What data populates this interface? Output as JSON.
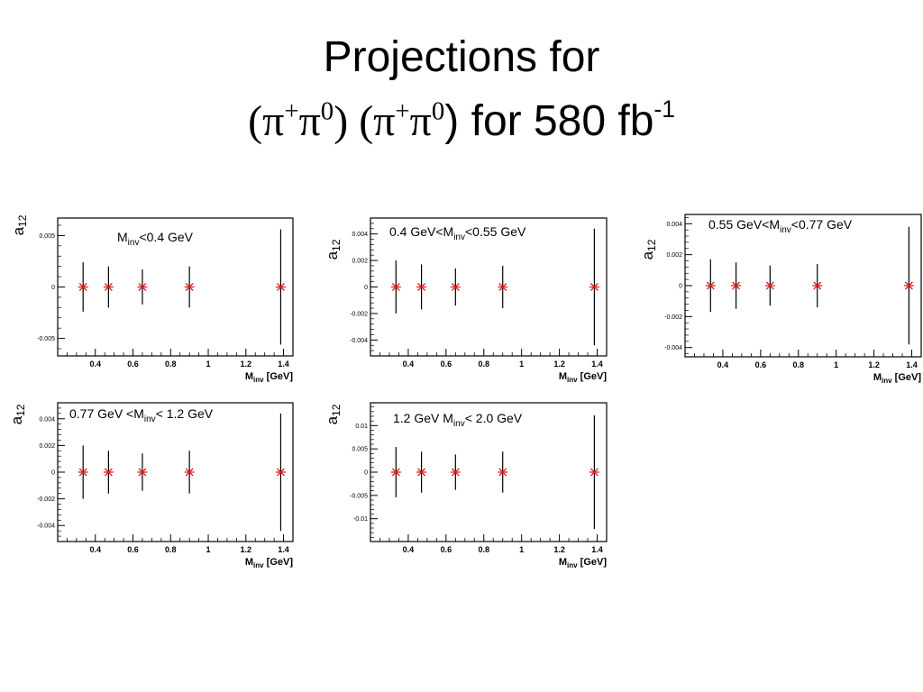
{
  "title": {
    "line1": "Projections for",
    "line2": {
      "open1": "(",
      "pi_a": "π",
      "plus_a": "+",
      "pi_b": "π",
      "zero_a": "0",
      "close1": ") (",
      "pi_c": "π",
      "plus_b": "+",
      "pi_d": "π",
      "zero_b": "0",
      "close2": ") for 580 fb",
      "exponent": "-1"
    }
  },
  "colors": {
    "marker": "#dd2222",
    "errorbar": "#000000",
    "frame": "#000000"
  },
  "chart_data": [
    {
      "type": "scatter",
      "label": {
        "pre": "M",
        "sub": "inv",
        "post": "<0.4 GeV"
      },
      "ylabel": {
        "base": "a",
        "sub": "12"
      },
      "xlabel": {
        "base": "M",
        "sub": "inv",
        "post": " [GeV]"
      },
      "xlim": [
        0.2,
        1.45
      ],
      "ylim": [
        -0.0067,
        0.0067
      ],
      "xticks": [
        0.4,
        0.6,
        0.8,
        1,
        1.2,
        1.4
      ],
      "yticks": [
        -0.005,
        0,
        0.005
      ],
      "ytick_labels": [
        "-0.005",
        "0",
        "0.005"
      ],
      "x": [
        0.335,
        0.47,
        0.65,
        0.9,
        1.385
      ],
      "y": [
        0,
        0,
        0,
        0,
        0
      ],
      "yerr": [
        0.0024,
        0.002,
        0.0017,
        0.002,
        0.0056
      ]
    },
    {
      "type": "scatter",
      "label": {
        "pre": "0.4 GeV<M",
        "sub": "inv",
        "post": "<0.55 GeV"
      },
      "ylabel": {
        "base": "a",
        "sub": "12"
      },
      "xlabel": {
        "base": "M",
        "sub": "inv",
        "post": " [GeV]"
      },
      "xlim": [
        0.2,
        1.45
      ],
      "ylim": [
        -0.0052,
        0.0052
      ],
      "xticks": [
        0.4,
        0.6,
        0.8,
        1,
        1.2,
        1.4
      ],
      "yticks": [
        -0.004,
        -0.002,
        0,
        0.002,
        0.004
      ],
      "ytick_labels": [
        "-0.004",
        "-0.002",
        "0",
        "0.002",
        "0.004"
      ],
      "x": [
        0.335,
        0.47,
        0.65,
        0.9,
        1.385
      ],
      "y": [
        0,
        0,
        0,
        0,
        0
      ],
      "yerr": [
        0.002,
        0.0017,
        0.0014,
        0.0016,
        0.0044
      ]
    },
    {
      "type": "scatter",
      "label": {
        "pre": "0.55 GeV<M",
        "sub": "inv",
        "post": "<0.77 GeV"
      },
      "ylabel": {
        "base": "a",
        "sub": "12"
      },
      "xlabel": {
        "base": "M",
        "sub": "inv",
        "post": " [GeV]"
      },
      "xlim": [
        0.2,
        1.45
      ],
      "ylim": [
        -0.0046,
        0.0046
      ],
      "xticks": [
        0.4,
        0.6,
        0.8,
        1,
        1.2,
        1.4
      ],
      "yticks": [
        -0.004,
        -0.002,
        0,
        0.002,
        0.004
      ],
      "ytick_labels": [
        "-0.004",
        "-0.002",
        "0",
        "0.002",
        "0.004"
      ],
      "x": [
        0.335,
        0.47,
        0.65,
        0.9,
        1.385
      ],
      "y": [
        0,
        0,
        0,
        0,
        0
      ],
      "yerr": [
        0.0017,
        0.0015,
        0.0013,
        0.0014,
        0.0038
      ]
    },
    {
      "type": "scatter",
      "label": {
        "pre": "0.77 GeV <M",
        "sub": "inv",
        "post": "< 1.2 GeV"
      },
      "ylabel": {
        "base": "a",
        "sub": "12"
      },
      "xlabel": {
        "base": "M",
        "sub": "inv",
        "post": " [GeV]"
      },
      "xlim": [
        0.2,
        1.45
      ],
      "ylim": [
        -0.0052,
        0.0052
      ],
      "xticks": [
        0.4,
        0.6,
        0.8,
        1,
        1.2,
        1.4
      ],
      "yticks": [
        -0.004,
        -0.002,
        0,
        0.002,
        0.004
      ],
      "ytick_labels": [
        "-0.004",
        "-0.002",
        "0",
        "0.002",
        "0.004"
      ],
      "x": [
        0.335,
        0.47,
        0.65,
        0.9,
        1.385
      ],
      "y": [
        0,
        0,
        0,
        0,
        0
      ],
      "yerr": [
        0.002,
        0.0016,
        0.0014,
        0.0016,
        0.0044
      ]
    },
    {
      "type": "scatter",
      "label": {
        "pre": "1.2 GeV M",
        "sub": "inv",
        "post": "< 2.0 GeV"
      },
      "ylabel": {
        "base": "a",
        "sub": "12"
      },
      "xlabel": {
        "base": "M",
        "sub": "inv",
        "post": " [GeV]"
      },
      "xlim": [
        0.2,
        1.45
      ],
      "ylim": [
        -0.0149,
        0.0149
      ],
      "xticks": [
        0.4,
        0.6,
        0.8,
        1,
        1.2,
        1.4
      ],
      "yticks": [
        -0.01,
        -0.005,
        0,
        0.005,
        0.01
      ],
      "ytick_labels": [
        "-0.01",
        "-0.005",
        "0",
        "0.005",
        "0.01"
      ],
      "x": [
        0.335,
        0.47,
        0.65,
        0.9,
        1.385
      ],
      "y": [
        0,
        0,
        0,
        0,
        0
      ],
      "yerr": [
        0.0054,
        0.0044,
        0.0038,
        0.0044,
        0.0122
      ]
    }
  ]
}
